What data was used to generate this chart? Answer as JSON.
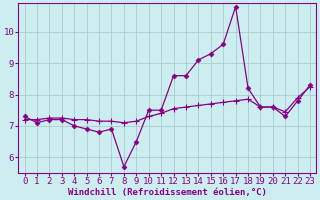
{
  "xlabel": "Windchill (Refroidissement éolien,°C)",
  "bg_color": "#cceef0",
  "line_color": "#880088",
  "grid_color": "#aacccc",
  "ylim": [
    5.5,
    10.9
  ],
  "xlim": [
    -0.5,
    23.5
  ],
  "yticks": [
    6,
    7,
    8,
    9,
    10
  ],
  "xticks": [
    0,
    1,
    2,
    3,
    4,
    5,
    6,
    7,
    8,
    9,
    10,
    11,
    12,
    13,
    14,
    15,
    16,
    17,
    18,
    19,
    20,
    21,
    22,
    23
  ],
  "series1_x": [
    0,
    1,
    2,
    3,
    4,
    5,
    6,
    7,
    8,
    9,
    10,
    11,
    12,
    13,
    14,
    15,
    16,
    17,
    18,
    19,
    20,
    21,
    22,
    23
  ],
  "series1_y": [
    7.3,
    7.1,
    7.2,
    7.2,
    7.0,
    6.9,
    6.8,
    6.9,
    5.7,
    6.5,
    7.5,
    7.5,
    8.6,
    8.6,
    9.1,
    9.3,
    9.6,
    10.8,
    8.2,
    7.6,
    7.6,
    7.3,
    7.8,
    8.3
  ],
  "series2_x": [
    0,
    1,
    2,
    3,
    4,
    5,
    6,
    7,
    8,
    9,
    10,
    11,
    12,
    13,
    14,
    15,
    16,
    17,
    18,
    19,
    20,
    21,
    22,
    23
  ],
  "series2_y": [
    7.2,
    7.2,
    7.25,
    7.25,
    7.2,
    7.2,
    7.15,
    7.15,
    7.1,
    7.15,
    7.3,
    7.4,
    7.55,
    7.6,
    7.65,
    7.7,
    7.75,
    7.8,
    7.85,
    7.6,
    7.6,
    7.45,
    7.9,
    8.25
  ],
  "font_family": "monospace",
  "xlabel_fontsize": 6.5,
  "tick_fontsize": 6.5,
  "linewidth": 0.9,
  "markersize": 3.5
}
